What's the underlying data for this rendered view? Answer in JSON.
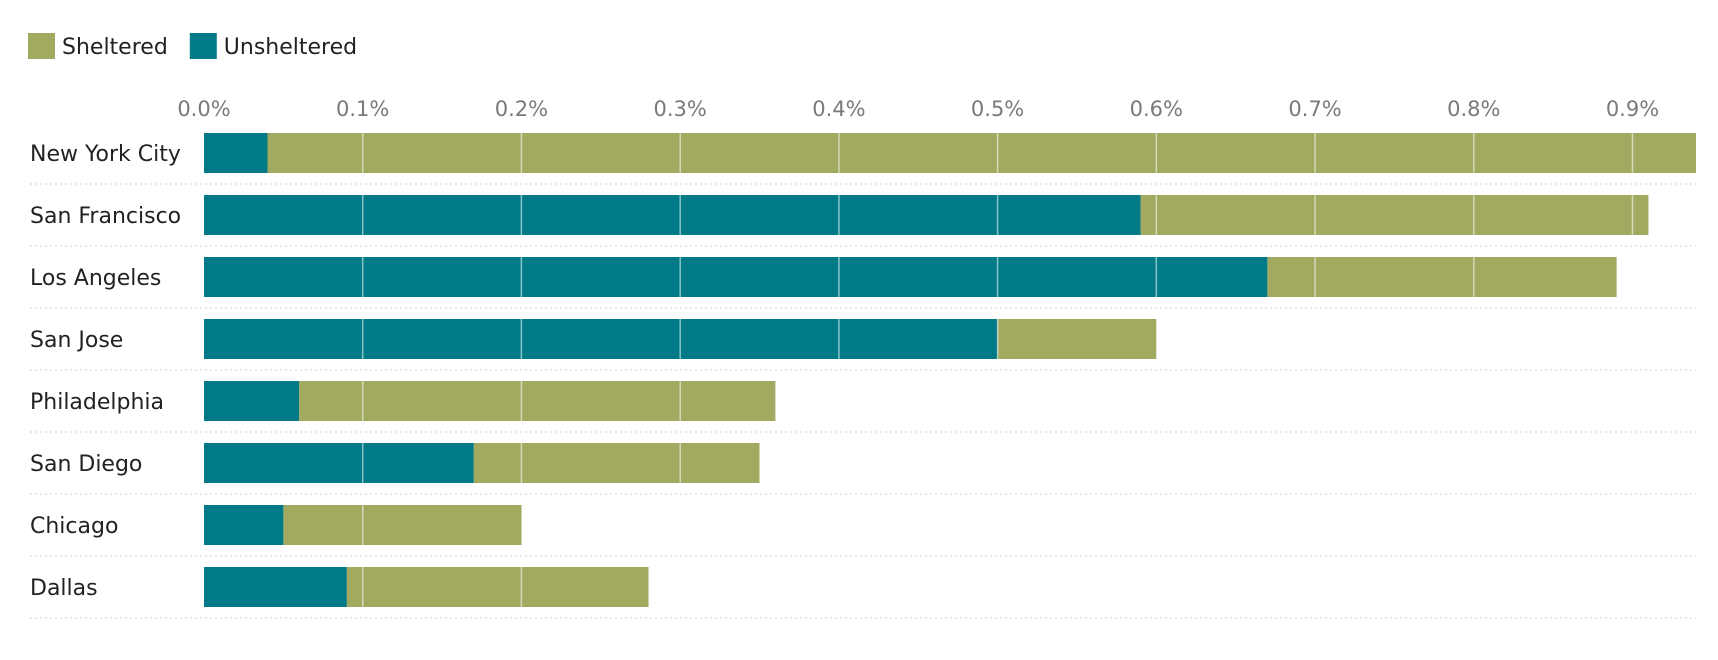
{
  "chart_data": {
    "type": "bar",
    "orientation": "horizontal",
    "stacked": true,
    "categories": [
      "New York City",
      "San Francisco",
      "Los Angeles",
      "San Jose",
      "Philadelphia",
      "San Diego",
      "Chicago",
      "Dallas"
    ],
    "series": [
      {
        "name": "Unsheltered",
        "color": "#017a88",
        "values": [
          0.04,
          0.59,
          0.67,
          0.5,
          0.06,
          0.17,
          0.05,
          0.09
        ]
      },
      {
        "name": "Sheltered",
        "color": "#a2aa62",
        "values": [
          0.9,
          0.32,
          0.22,
          0.1,
          0.3,
          0.18,
          0.15,
          0.19
        ]
      }
    ],
    "legend": {
      "position": "top-left",
      "items": [
        {
          "name": "Sheltered",
          "color": "#a2aa62"
        },
        {
          "name": "Unsheltered",
          "color": "#017a88"
        }
      ]
    },
    "xaxis": {
      "position": "top",
      "ticks": [
        "0.0%",
        "0.1%",
        "0.2%",
        "0.3%",
        "0.4%",
        "0.5%",
        "0.6%",
        "0.7%",
        "0.8%",
        "0.9%"
      ],
      "tick_values": [
        0,
        0.1,
        0.2,
        0.3,
        0.4,
        0.5,
        0.6,
        0.7,
        0.8,
        0.9
      ],
      "xlim": [
        0,
        0.94
      ]
    },
    "grid": true,
    "title": "",
    "xlabel": "",
    "ylabel": ""
  }
}
